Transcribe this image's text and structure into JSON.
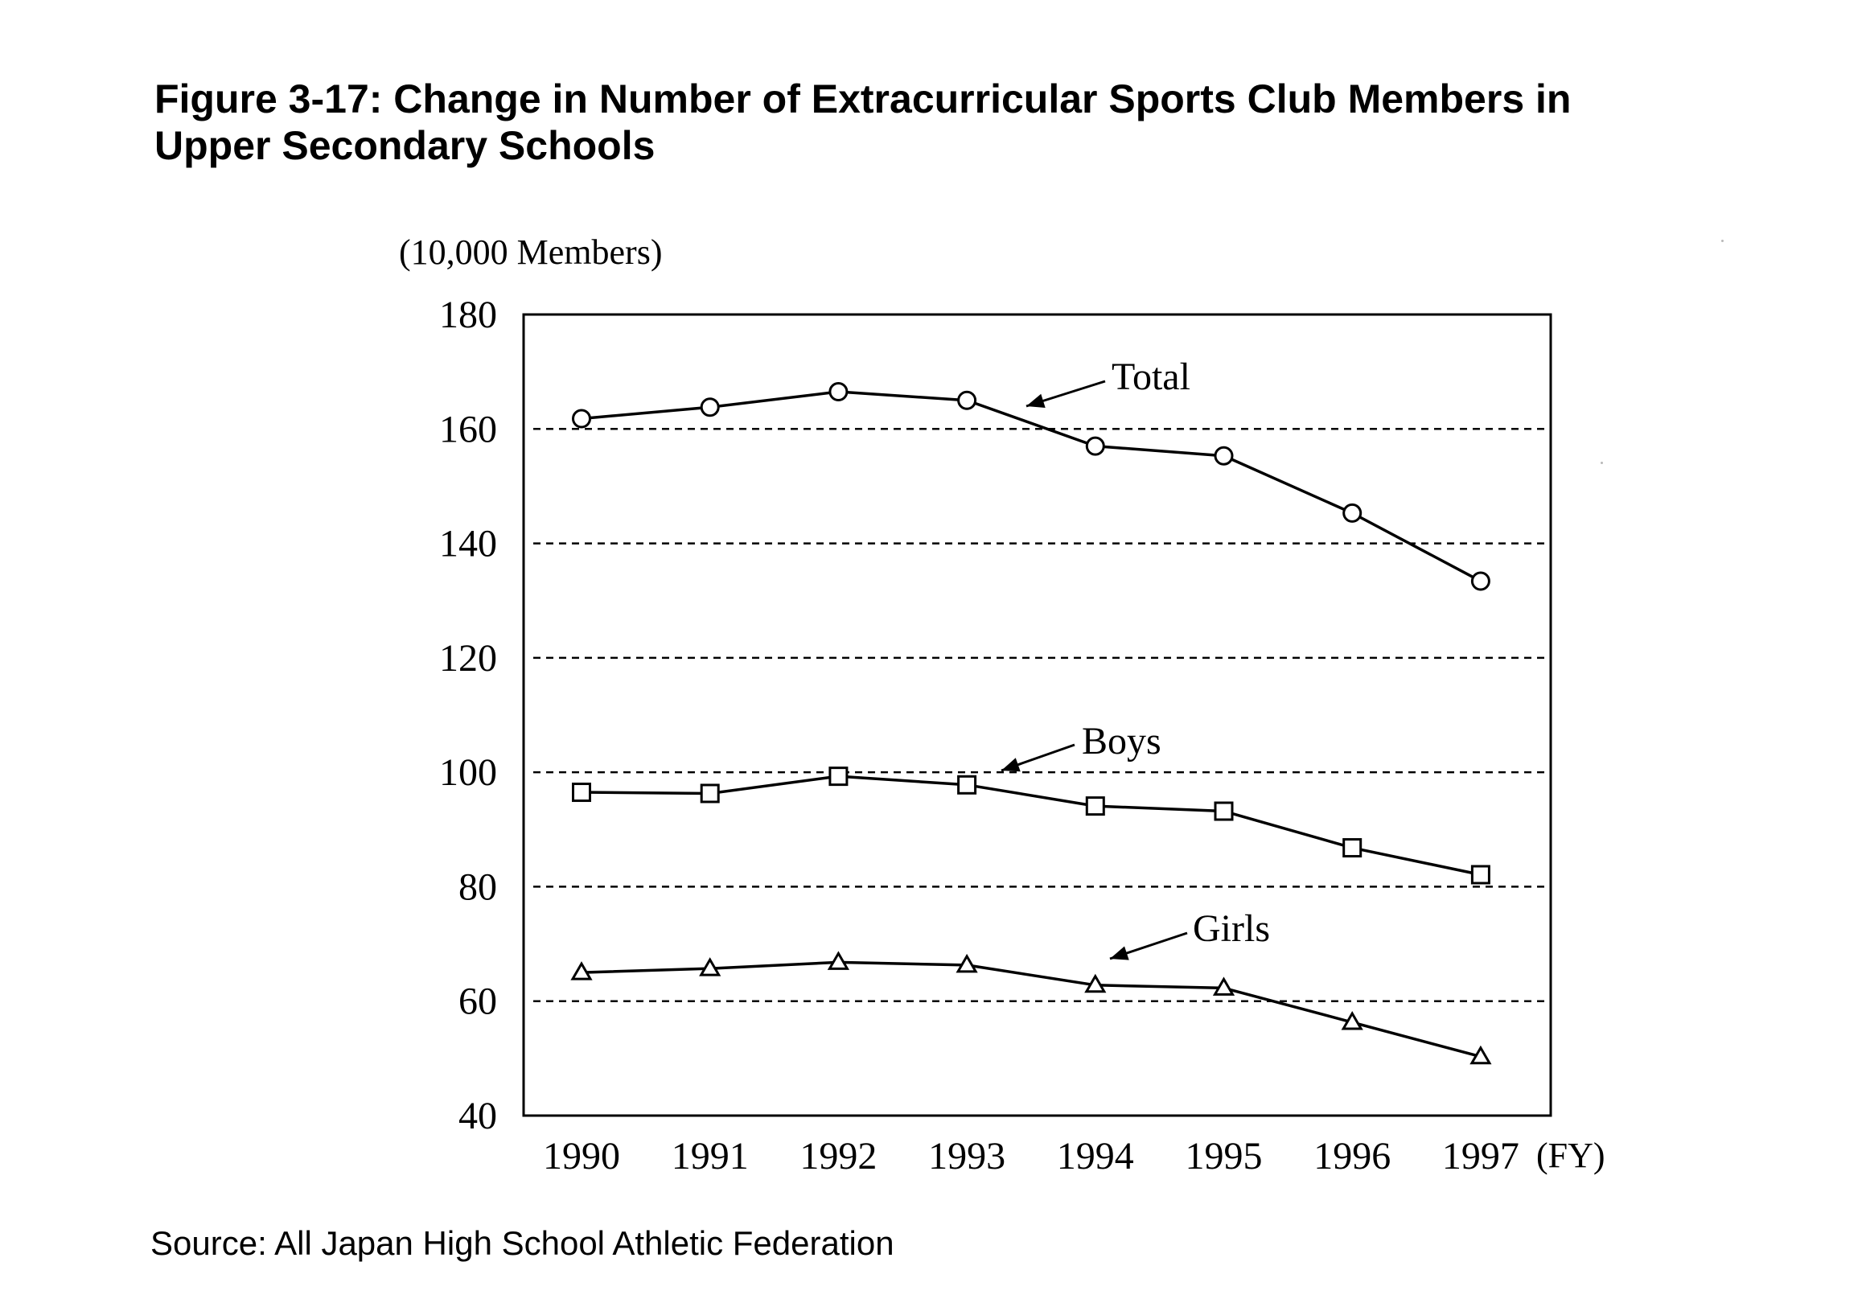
{
  "title": {
    "line1": "Figure 3-17: Change in Number of Extracurricular Sports Club Members in",
    "line2": "Upper Secondary Schools"
  },
  "source": "Source: All Japan High School Athletic Federation",
  "chart_data": {
    "type": "line",
    "title": "Figure 3-17: Change in Number of Extracurricular Sports Club Members in Upper Secondary Schools",
    "ylabel": "(10,000 Members)",
    "xlabel": "(FY)",
    "x": [
      "1990",
      "1991",
      "1992",
      "1993",
      "1994",
      "1995",
      "1996",
      "1997"
    ],
    "ylim": [
      40,
      180
    ],
    "yticks": [
      40,
      60,
      80,
      100,
      120,
      140,
      160,
      180
    ],
    "grid": "horizontal dashed",
    "series": [
      {
        "name": "Total",
        "marker": "circle",
        "values": [
          161.8,
          163.8,
          166.5,
          165.0,
          157.0,
          155.3,
          145.3,
          133.4
        ]
      },
      {
        "name": "Boys",
        "marker": "square",
        "values": [
          96.5,
          96.3,
          99.3,
          97.8,
          94.1,
          93.2,
          86.8,
          82.1
        ]
      },
      {
        "name": "Girls",
        "marker": "triangle",
        "values": [
          65.0,
          65.7,
          66.8,
          66.3,
          62.8,
          62.3,
          56.3,
          50.3
        ]
      }
    ],
    "colors": {
      "line": "#000000",
      "marker_fill": "#ffffff",
      "grid": "#000000"
    }
  }
}
